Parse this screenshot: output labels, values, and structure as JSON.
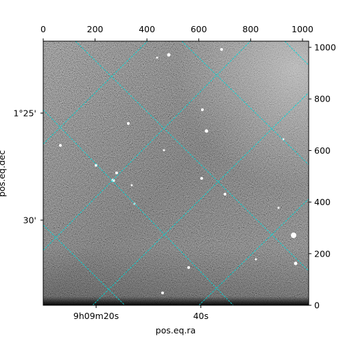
{
  "chart_data": {
    "type": "image",
    "x_label": "pos.eq.ra",
    "y_label": "pos.eq.dec",
    "xlim": [
      0,
      1024
    ],
    "ylim": [
      0,
      1024
    ],
    "xticks": [
      0,
      200,
      400,
      600,
      800,
      1000
    ],
    "yticks": [
      0,
      200,
      400,
      600,
      800,
      1000
    ],
    "world_xticks": [
      {
        "value": 204,
        "label": "9h09m20s"
      },
      {
        "value": 608,
        "label": "40s"
      }
    ],
    "world_yticks": [
      {
        "value": 745,
        "label": "1°25'"
      },
      {
        "value": 330,
        "label": "30'"
      }
    ],
    "grid_color": "#00d8d8"
  }
}
